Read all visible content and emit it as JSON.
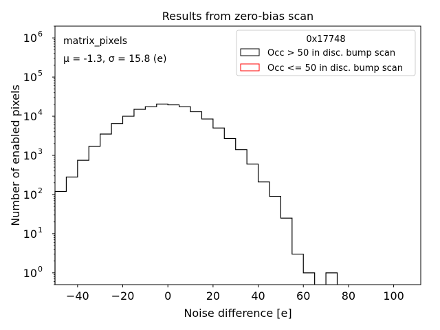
{
  "chart_data": {
    "type": "histogram",
    "title": "Results from zero-bias scan",
    "xlabel": "Noise difference [e]",
    "ylabel": "Number of enabled pixels",
    "xlim": [
      -50,
      112
    ],
    "ylim": [
      0.5,
      2000000
    ],
    "yscale": "log",
    "xticks": [
      -40,
      -20,
      0,
      20,
      40,
      60,
      80,
      100
    ],
    "xtick_labels": [
      "−40",
      "−20",
      "0",
      "20",
      "40",
      "60",
      "80",
      "100"
    ],
    "yticks": [
      1,
      10,
      100,
      1000,
      10000,
      100000,
      1000000
    ],
    "ytick_base": "10",
    "ytick_exponents": [
      "0",
      "1",
      "2",
      "3",
      "4",
      "5",
      "6"
    ],
    "annotations": {
      "line1": "matrix_pixels",
      "line2": "μ = -1.3, σ = 15.8 (e)"
    },
    "legend": {
      "title": "0x17748",
      "placement": "top-right",
      "entries": [
        {
          "label": "Occ > 50 in disc. bump scan",
          "color": "#000000"
        },
        {
          "label": "Occ <= 50 in disc. bump scan",
          "color": "#ff0000"
        }
      ]
    },
    "series": [
      {
        "name": "Occ > 50 in disc. bump scan",
        "color": "#000000",
        "bin_edges": [
          -50,
          -45,
          -40,
          -35,
          -30,
          -25,
          -20,
          -15,
          -10,
          -5,
          0,
          5,
          10,
          15,
          20,
          25,
          30,
          35,
          40,
          45,
          50,
          55,
          60,
          65,
          70,
          75
        ],
        "counts": [
          120,
          280,
          750,
          1700,
          3500,
          6500,
          10000,
          15000,
          17500,
          20500,
          19500,
          17500,
          13000,
          8500,
          5000,
          2700,
          1400,
          600,
          210,
          90,
          25,
          3,
          1,
          0,
          1
        ]
      },
      {
        "name": "Occ <= 50 in disc. bump scan",
        "color": "#ff0000",
        "bin_edges": [],
        "counts": []
      }
    ]
  }
}
